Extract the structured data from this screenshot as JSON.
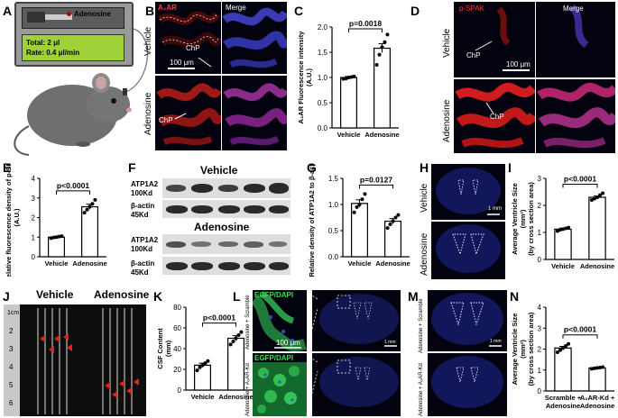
{
  "panels": {
    "A": {
      "letter": "A",
      "pump_drug": "Adenosine",
      "total": "Total: 2 μl",
      "rate": "Rate: 0.4 μl/min"
    },
    "B": {
      "letter": "B",
      "col1": "A₂AR",
      "col2": "Merge",
      "row1": "Vehicle",
      "row2": "Adenosine",
      "chp": "ChP",
      "scale": "100 μm"
    },
    "D": {
      "letter": "D",
      "col1": "p-SPAK",
      "col2": "Merge",
      "row1": "Vehicle",
      "row2": "Adenosine",
      "chp": "ChP",
      "scale": "100 μm"
    },
    "F": {
      "letter": "F",
      "title1": "Vehicle",
      "title2": "Adenosine",
      "atp": "ATP1A2",
      "atp_kd": "100Kd",
      "actin": "β-actin",
      "actin_kd": "45Kd"
    },
    "H": {
      "letter": "H",
      "row1": "Vehicle",
      "row2": "Adenosine",
      "scale": "1 mm"
    },
    "J": {
      "letter": "J",
      "g1": "Vehicle",
      "g2": "Adenosine",
      "ruler": [
        "1cm",
        "2",
        "3",
        "4",
        "5",
        "6"
      ]
    },
    "L": {
      "letter": "L",
      "stain": "EGFP/DAPI",
      "row1": "Adenosine + Scramble",
      "row2": "Adenosine + A₂AR-Kd",
      "scale": "100 μm",
      "scale_mm": "1 mm"
    },
    "M": {
      "letter": "M",
      "row1": "Adenosine + Scramble",
      "row2": "Adenosine + A₂AR-Kd",
      "scale_mm": "1 mm"
    }
  },
  "chart_data": [
    {
      "panel": "C",
      "type": "bar",
      "categories": [
        "Vehicle",
        "Adenosine"
      ],
      "values": [
        1.0,
        1.58
      ],
      "errors": [
        0.02,
        0.09
      ],
      "points": [
        [
          0.97,
          0.98,
          1.0,
          1.01,
          1.02
        ],
        [
          1.25,
          1.45,
          1.6,
          1.7,
          1.85
        ]
      ],
      "ylabel": "A₂AR Fluorescence intensity (A.U.)",
      "ylim": [
        0,
        2.0
      ],
      "yticks": [
        "0.0",
        "0.5",
        "1.0",
        "1.5",
        "2.0"
      ],
      "pvalue": "p=0.0018"
    },
    {
      "panel": "E",
      "type": "bar",
      "categories": [
        "Vehicle",
        "Adenosine"
      ],
      "values": [
        1.0,
        2.55
      ],
      "errors": [
        0.03,
        0.13
      ],
      "points": [
        [
          0.95,
          0.98,
          1.0,
          1.03,
          1.05
        ],
        [
          2.25,
          2.4,
          2.55,
          2.7,
          2.9
        ]
      ],
      "ylabel": "Relative fluorescence density of p-SPAK (A.U.)",
      "ylim": [
        0,
        4
      ],
      "yticks": [
        "0",
        "1",
        "2",
        "3",
        "4"
      ],
      "pvalue": "p<0.0001"
    },
    {
      "panel": "G",
      "type": "bar",
      "categories": [
        "Vehicle",
        "Adenosine"
      ],
      "values": [
        1.02,
        0.68
      ],
      "errors": [
        0.07,
        0.05
      ],
      "points": [
        [
          0.85,
          0.95,
          1.0,
          1.1,
          1.2
        ],
        [
          0.55,
          0.62,
          0.68,
          0.75,
          0.8
        ]
      ],
      "ylabel": "Relative density of ATP1A2 to β-actin",
      "ylim": [
        0,
        1.5
      ],
      "yticks": [
        "0.0",
        "0.5",
        "1.0",
        "1.5"
      ],
      "pvalue": "p=0.0127"
    },
    {
      "panel": "I",
      "type": "bar",
      "categories": [
        "Vehicle",
        "Adenosine"
      ],
      "values": [
        1.12,
        2.3
      ],
      "errors": [
        0.04,
        0.05
      ],
      "points": [
        [
          1.05,
          1.1,
          1.12,
          1.15,
          1.18
        ],
        [
          2.2,
          2.25,
          2.3,
          2.38,
          2.45
        ]
      ],
      "ylabel": "Average Ventricle Size (mm²) (by cross section area)",
      "ylim": [
        0,
        3
      ],
      "yticks": [
        "0",
        "1",
        "2",
        "3"
      ],
      "pvalue": "p<0.0001"
    },
    {
      "panel": "K",
      "type": "bar",
      "categories": [
        "Vehicle",
        "Adenosine"
      ],
      "values": [
        24,
        50
      ],
      "errors": [
        2,
        2.5
      ],
      "points": [
        [
          19,
          22,
          24,
          26,
          28
        ],
        [
          44,
          47,
          50,
          53,
          56
        ]
      ],
      "ylabel": "CSF Content (mm)",
      "ylim": [
        0,
        80
      ],
      "yticks": [
        "0",
        "20",
        "40",
        "60",
        "80"
      ],
      "pvalue": "p<0.0001"
    },
    {
      "panel": "N",
      "type": "bar",
      "categories": [
        "Scramble + Adenosine",
        "A₂AR-Kd + Adenosine"
      ],
      "values": [
        2.05,
        1.1
      ],
      "errors": [
        0.08,
        0.03
      ],
      "points": [
        [
          1.85,
          1.95,
          2.05,
          2.15,
          2.25
        ],
        [
          1.06,
          1.08,
          1.1,
          1.12,
          1.14
        ]
      ],
      "ylabel": "Average Ventricle Size (mm²) (by cross section area)",
      "ylim": [
        0,
        4
      ],
      "yticks": [
        "0",
        "1",
        "2",
        "3",
        "4"
      ],
      "pvalue": "p<0.0001"
    }
  ]
}
